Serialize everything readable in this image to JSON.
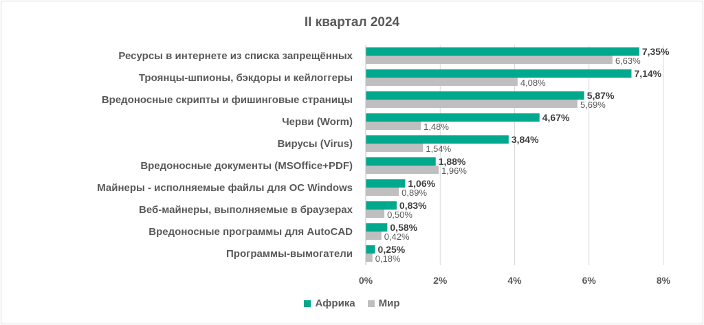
{
  "chart_data": {
    "type": "bar",
    "orientation": "horizontal",
    "title": "II квартал 2024",
    "categories": [
      "Ресурсы в интернете из списка запрещённых",
      "Троянцы-шпионы, бэкдоры и кейлоггеры",
      "Вредоносные скрипты и фишинговые страницы",
      "Черви (Worm)",
      "Вирусы (Virus)",
      "Вредоносные документы (MSOffice+PDF)",
      "Майнеры - исполняемые файлы для ОС Windows",
      "Веб-майнеры, выполняемые в браузерах",
      "Вредоносные программы для AutoCAD",
      "Программы-вымогатели"
    ],
    "series": [
      {
        "name": "Африка",
        "color": "#00a88e",
        "values": [
          7.35,
          7.14,
          5.87,
          4.67,
          3.84,
          1.88,
          1.06,
          0.83,
          0.58,
          0.25
        ],
        "labels": [
          "7,35%",
          "7,14%",
          "5,87%",
          "4,67%",
          "3,84%",
          "1,88%",
          "1,06%",
          "0,83%",
          "0,58%",
          "0,25%"
        ]
      },
      {
        "name": "Мир",
        "color": "#bfbfbf",
        "values": [
          6.63,
          4.08,
          5.69,
          1.48,
          1.54,
          1.96,
          0.89,
          0.5,
          0.42,
          0.18
        ],
        "labels": [
          "6,63%",
          "4,08%",
          "5,69%",
          "1,48%",
          "1,54%",
          "1,96%",
          "0,89%",
          "0,50%",
          "0,42%",
          "0,18%"
        ]
      }
    ],
    "xlim": [
      0,
      8
    ],
    "xticks": [
      0,
      2,
      4,
      6,
      8
    ],
    "xtick_labels": [
      "0%",
      "2%",
      "4%",
      "6%",
      "8%"
    ],
    "grid": "vertical",
    "legend": "bottom"
  }
}
